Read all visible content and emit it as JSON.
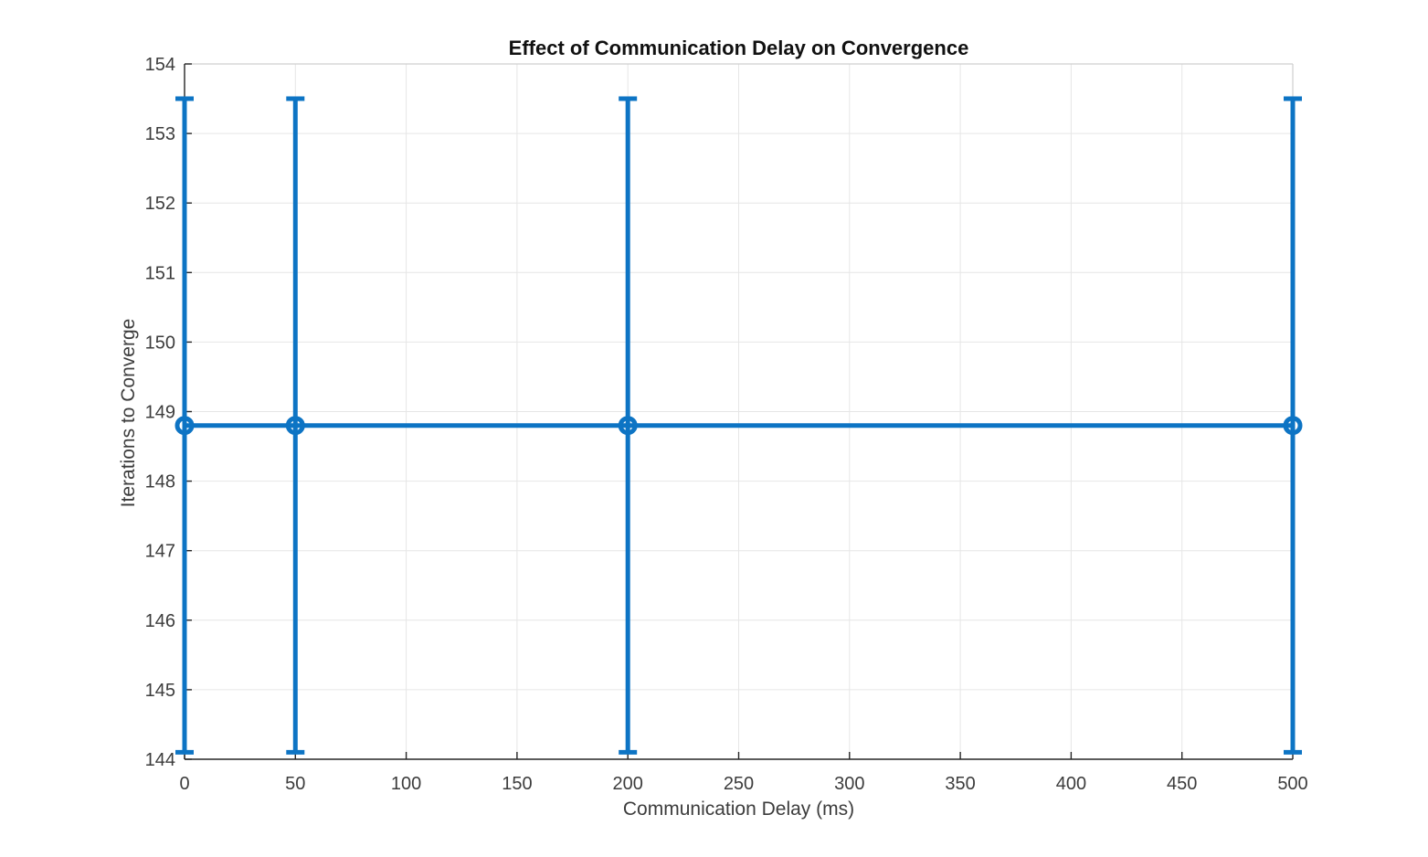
{
  "page": {
    "background": "#ffffff"
  },
  "chart_data": {
    "type": "line",
    "subtype": "errorbar",
    "title": "Effect of Communication Delay on Convergence",
    "xlabel": "Communication Delay (ms)",
    "ylabel": "Iterations to Converge",
    "x": [
      0,
      50,
      200,
      500
    ],
    "y": [
      148.8,
      148.8,
      148.8,
      148.8
    ],
    "y_upper": [
      153.5,
      153.5,
      153.5,
      153.5
    ],
    "y_lower": [
      144.1,
      144.1,
      144.1,
      144.1
    ],
    "xlim": [
      0,
      500
    ],
    "ylim": [
      144,
      154
    ],
    "xticks": [
      0,
      50,
      100,
      150,
      200,
      250,
      300,
      350,
      400,
      450,
      500
    ],
    "yticks": [
      144,
      145,
      146,
      147,
      148,
      149,
      150,
      151,
      152,
      153,
      154
    ],
    "grid": true,
    "legend": "none",
    "line_color": "#0D74C4",
    "axis_color": "#262626",
    "grid_color": "#E6E6E6",
    "box_color": "#CFCFCF",
    "tick_label_color": "#3C3C3C"
  }
}
